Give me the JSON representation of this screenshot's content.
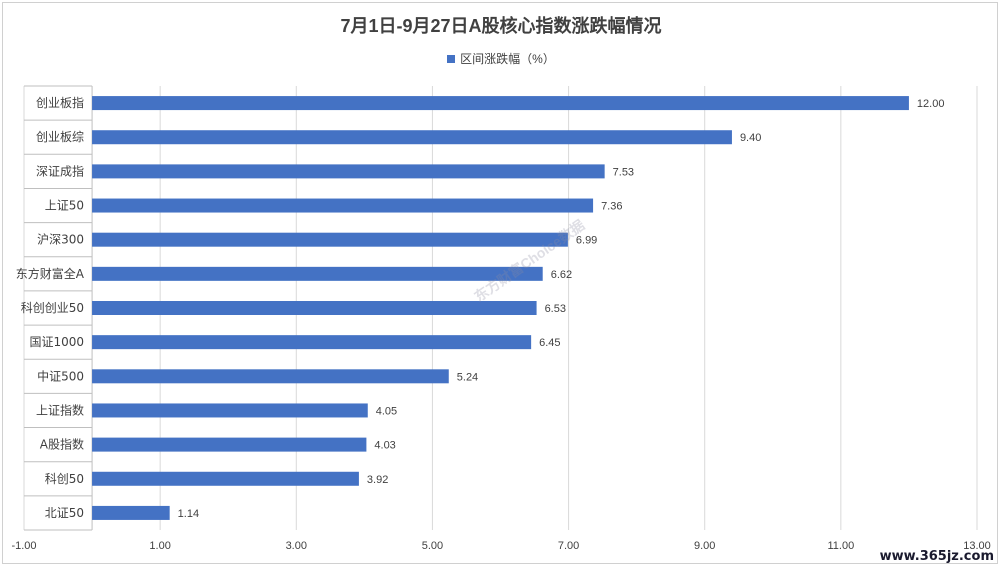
{
  "chart_data": {
    "type": "bar",
    "orientation": "horizontal",
    "title": "7月1日-9月27日A股核心指数涨跌幅情况",
    "series": [
      {
        "name": "区间涨跌幅（%）",
        "color": "#4472C4",
        "values": [
          12.0,
          9.4,
          7.53,
          7.36,
          6.99,
          6.62,
          6.53,
          6.45,
          5.24,
          4.05,
          4.03,
          3.92,
          1.14
        ],
        "labels": [
          "12.00",
          "9.40",
          "7.53",
          "7.36",
          "6.99",
          "6.62",
          "6.53",
          "6.45",
          "5.24",
          "4.05",
          "4.03",
          "3.92",
          "1.14"
        ]
      }
    ],
    "categories": [
      "创业板指",
      "创业板综",
      "深证成指",
      "上证50",
      "沪深300",
      "东方财富全A",
      "科创创业50",
      "国证1000",
      "中证500",
      "上证指数",
      "A股指数",
      "科创50",
      "北证50"
    ],
    "xlim": [
      -1,
      13
    ],
    "xticks": [
      -1,
      1,
      3,
      5,
      7,
      9,
      11,
      13
    ],
    "xtick_labels": [
      "-1.00",
      "1.00",
      "3.00",
      "5.00",
      "7.00",
      "9.00",
      "11.00",
      "13.00"
    ],
    "grid": true,
    "legend_position": "top"
  },
  "watermark": "东方财富Choice数据",
  "site_mark": "www.365jz.com"
}
